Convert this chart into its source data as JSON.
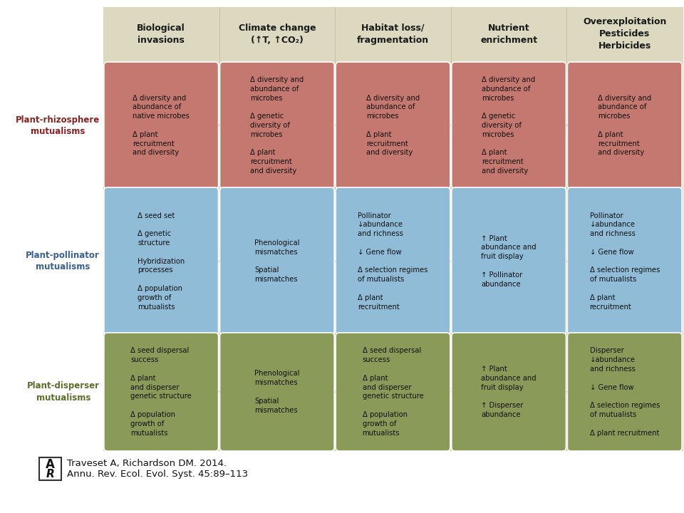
{
  "bg_color": "#f5f0e0",
  "col_bg_color": "#ddd8c0",
  "white": "#ffffff",
  "row_label_colors": [
    "#8b2020",
    "#3a6090",
    "#5a6e2a"
  ],
  "row_labels": [
    "Plant-rhizosphere\nmutualisms",
    "Plant-pollinator\nmutualisms",
    "Plant-disperser\nmutualisms"
  ],
  "col_headers": [
    "Biological\ninvasions",
    "Climate change\n(↑T, ↑CO₂)",
    "Habitat loss/\nfragmentation",
    "Nutrient\nenrichment",
    "Overexploitation\nPesticides\nHerbicides"
  ],
  "cell_colors": {
    "rhizosphere": "#c47870",
    "pollinator": "#90bcd8",
    "disperser": "#8a9a58"
  },
  "connector_color": "#8b3030",
  "cells": [
    [
      "Δ diversity and\nabundance of\nnative microbes\n\nΔ plant\nrecruitment\nand diversity",
      "Δ diversity and\nabundance of\nmicrobes\n\nΔ genetic\ndiversity of\nmicrobes\n\nΔ plant\nrecruitment\nand diversity",
      "Δ diversity and\nabundance of\nmicrobes\n\nΔ plant\nrecruitment\nand diversity",
      "Δ diversity and\nabundance of\nmicrobes\n\nΔ genetic\ndiversity of\nmicrobes\n\nΔ plant\nrecruitment\nand diversity",
      "Δ diversity and\nabundance of\nmicrobes\n\nΔ plant\nrecruitment\nand diversity"
    ],
    [
      "Δ seed set\n\nΔ genetic\nstructure\n\nHybridization\nprocesses\n\nΔ population\ngrowth of\nmutualists",
      "Phenological\nmismatches\n\nSpatial\nmismatches",
      "Pollinator\n↓abundance\nand richness\n\n↓ Gene flow\n\nΔ selection regimes\nof mutualists\n\nΔ plant\nrecruitment",
      "↑ Plant\nabundance and\nfruit display\n\n↑ Pollinator\nabundance",
      "Pollinator\n↓abundance\nand richness\n\n↓ Gene flow\n\nΔ selection regimes\nof mutualists\n\nΔ plant\nrecruitment"
    ],
    [
      "Δ seed dispersal\nsuccess\n\nΔ plant\nand disperser\ngenetic structure\n\nΔ population\ngrowth of\nmutualists",
      "Phenological\nmismatches\n\nSpatial\nmismatches",
      "Δ seed dispersal\nsuccess\n\nΔ plant\nand disperser\ngenetic structure\n\nΔ population\ngrowth of\nmutualists",
      "↑ Plant\nabundance and\nfruit display\n\n↑ Disperser\nabundance",
      "Disperser\n↓abundance\nand richness\n\n↓ Gene flow\n\nΔ selection regimes\nof mutualists\n\nΔ plant recruitment"
    ]
  ],
  "citation_line1": "Traveset A, Richardson DM. 2014.",
  "citation_line2": "Annu. Rev. Ecol. Evol. Syst. 45:89–113"
}
